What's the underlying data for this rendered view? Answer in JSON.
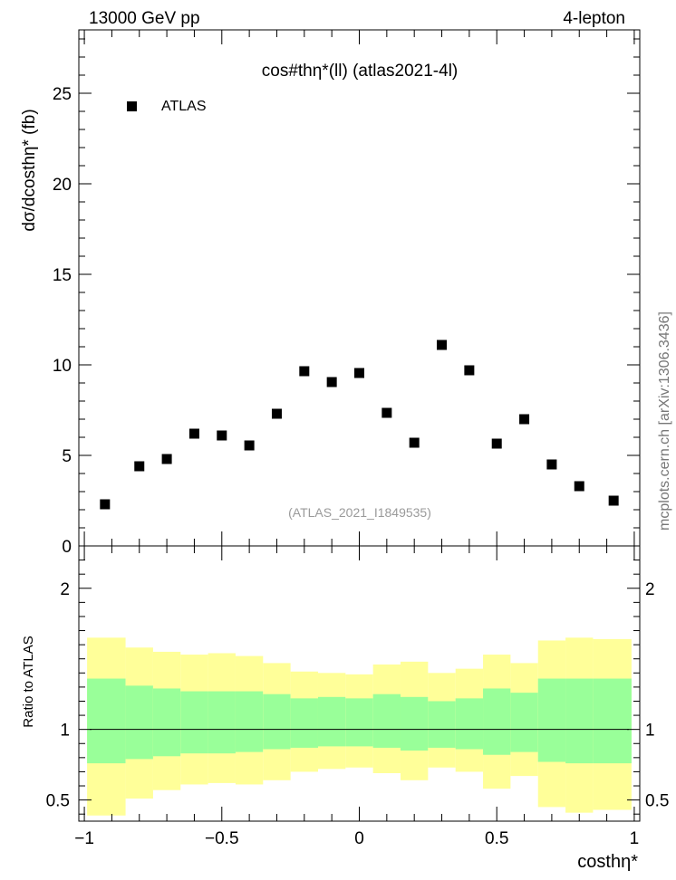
{
  "chart_data": [
    {
      "type": "scatter",
      "panel": "main",
      "title": "cos#thη*(ll) (atlas2021-4l)",
      "header_left": "13000 GeV pp",
      "header_right": "4-lepton",
      "ylabel": "dσ/dcosthη* (fb)",
      "watermark": "(ATLAS_2021_I1849535)",
      "side_label": "mcplots.cern.ch [arXiv:1306.3436]",
      "xlim": [
        -1.02,
        1.02
      ],
      "ylim": [
        0,
        28.5
      ],
      "y_ticks": [
        0,
        5,
        10,
        15,
        20,
        25
      ],
      "legend": {
        "position": "top-left",
        "entries": [
          "ATLAS"
        ]
      },
      "series": [
        {
          "name": "ATLAS",
          "marker": "square",
          "color": "#000000",
          "x": [
            -0.925,
            -0.8,
            -0.7,
            -0.6,
            -0.5,
            -0.4,
            -0.3,
            -0.2,
            -0.1,
            0.0,
            0.1,
            0.2,
            0.3,
            0.4,
            0.5,
            0.6,
            0.7,
            0.8,
            0.925
          ],
          "y": [
            2.3,
            4.4,
            4.8,
            6.2,
            6.1,
            5.55,
            7.3,
            9.65,
            9.05,
            9.55,
            7.35,
            5.7,
            11.1,
            9.7,
            5.65,
            7.0,
            4.5,
            3.3,
            2.5
          ]
        }
      ]
    },
    {
      "type": "area",
      "panel": "ratio",
      "ylabel": "Ratio to ATLAS",
      "xlabel": "costhη*",
      "xlim": [
        -1.02,
        1.02
      ],
      "ylim": [
        0.35,
        2.3
      ],
      "y_ticks": [
        0.5,
        1,
        2
      ],
      "x_ticks": [
        "−1",
        "−0.5",
        "0",
        "0.5",
        "1"
      ],
      "reference_line": 1,
      "colors": {
        "inner_band": "#99ff99",
        "outer_band": "#ffff99"
      },
      "bin_edges": [
        -0.99,
        -0.85,
        -0.75,
        -0.65,
        -0.55,
        -0.45,
        -0.35,
        -0.25,
        -0.15,
        -0.05,
        0.05,
        0.15,
        0.25,
        0.35,
        0.45,
        0.55,
        0.65,
        0.75,
        0.85,
        0.99
      ],
      "inner_band": {
        "upper": [
          1.36,
          1.31,
          1.29,
          1.27,
          1.27,
          1.27,
          1.25,
          1.22,
          1.23,
          1.22,
          1.25,
          1.23,
          1.2,
          1.22,
          1.29,
          1.26,
          1.36,
          1.36,
          1.36
        ],
        "lower": [
          0.76,
          0.79,
          0.81,
          0.83,
          0.83,
          0.84,
          0.86,
          0.87,
          0.88,
          0.88,
          0.87,
          0.85,
          0.87,
          0.86,
          0.82,
          0.84,
          0.77,
          0.76,
          0.76
        ]
      },
      "outer_band": {
        "upper": [
          1.65,
          1.58,
          1.55,
          1.53,
          1.54,
          1.52,
          1.47,
          1.41,
          1.4,
          1.39,
          1.46,
          1.48,
          1.4,
          1.43,
          1.53,
          1.47,
          1.63,
          1.65,
          1.64
        ],
        "lower": [
          0.39,
          0.51,
          0.57,
          0.61,
          0.62,
          0.61,
          0.64,
          0.7,
          0.72,
          0.73,
          0.69,
          0.64,
          0.73,
          0.7,
          0.58,
          0.67,
          0.45,
          0.41,
          0.43
        ]
      }
    }
  ]
}
